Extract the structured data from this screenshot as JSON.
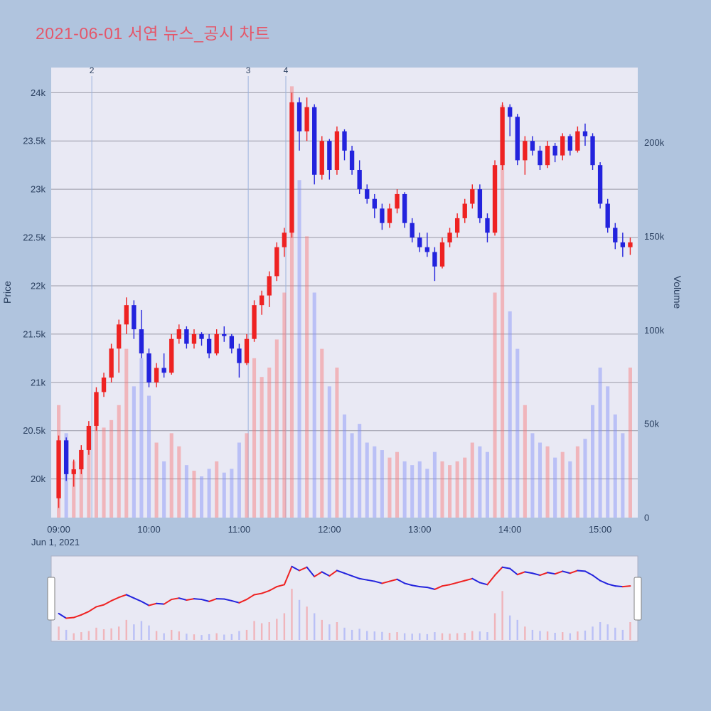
{
  "colors": {
    "page_bg": "#b0c4de",
    "plot_bg": "#e9e9f4",
    "title": "#e4576a",
    "grid": "#9a9aa8",
    "tick": "#2a3f5f",
    "up": "#ee2222",
    "down": "#2323dd",
    "vol_up": "rgba(248,118,118,0.45)",
    "vol_down": "rgba(128,142,248,0.45)",
    "annotation_line": "#9db3dd"
  },
  "chart_data": {
    "type": "candlestick+volume",
    "title": "2021-06-01 서연 뉴스_공시 차트",
    "date_label": "Jun 1, 2021",
    "x_axis": {
      "ticks": [
        "09:00",
        "10:00",
        "11:00",
        "12:00",
        "13:00",
        "14:00",
        "15:00"
      ],
      "range": [
        "08:55",
        "15:25"
      ]
    },
    "price_axis": {
      "label": "Price",
      "range": [
        19600,
        24260
      ],
      "ticks": [
        {
          "v": 20000,
          "label": "20k"
        },
        {
          "v": 20500,
          "label": "20.5k"
        },
        {
          "v": 21000,
          "label": "21k"
        },
        {
          "v": 21500,
          "label": "21.5k"
        },
        {
          "v": 22000,
          "label": "22k"
        },
        {
          "v": 22500,
          "label": "22.5k"
        },
        {
          "v": 23000,
          "label": "23k"
        },
        {
          "v": 23500,
          "label": "23.5k"
        },
        {
          "v": 24000,
          "label": "24k"
        }
      ]
    },
    "volume_axis": {
      "label": "Volume",
      "range": [
        0,
        240000
      ],
      "ticks": [
        {
          "v": 0,
          "label": "0"
        },
        {
          "v": 50000,
          "label": "50k"
        },
        {
          "v": 100000,
          "label": "100k"
        },
        {
          "v": 150000,
          "label": "150k"
        },
        {
          "v": 200000,
          "label": "200k"
        }
      ]
    },
    "annotations": [
      {
        "label": "2",
        "time": "09:22"
      },
      {
        "label": "3",
        "time": "11:06"
      },
      {
        "label": "4",
        "time": "11:31"
      }
    ],
    "candle_format": [
      "time",
      "open",
      "high",
      "low",
      "close",
      "volume"
    ],
    "candles": [
      [
        "09:00",
        19800,
        20450,
        19700,
        20400,
        60000
      ],
      [
        "09:05",
        20400,
        20430,
        19980,
        20050,
        45000
      ],
      [
        "09:10",
        20050,
        20200,
        19920,
        20100,
        30000
      ],
      [
        "09:15",
        20100,
        20350,
        20050,
        20300,
        35000
      ],
      [
        "09:20",
        20300,
        20600,
        20250,
        20550,
        40000
      ],
      [
        "09:25",
        20550,
        20950,
        20500,
        20900,
        55000
      ],
      [
        "09:30",
        20900,
        21100,
        20850,
        21050,
        48000
      ],
      [
        "09:35",
        21050,
        21400,
        21000,
        21350,
        52000
      ],
      [
        "09:40",
        21350,
        21650,
        21100,
        21600,
        60000
      ],
      [
        "09:45",
        21600,
        21880,
        21500,
        21800,
        90000
      ],
      [
        "09:50",
        21800,
        21850,
        21450,
        21550,
        70000
      ],
      [
        "09:55",
        21550,
        21750,
        21250,
        21300,
        85000
      ],
      [
        "10:00",
        21300,
        21350,
        20950,
        21000,
        65000
      ],
      [
        "10:05",
        21000,
        21200,
        20950,
        21150,
        40000
      ],
      [
        "10:10",
        21150,
        21300,
        21050,
        21100,
        30000
      ],
      [
        "10:15",
        21100,
        21500,
        21080,
        21450,
        45000
      ],
      [
        "10:20",
        21450,
        21600,
        21400,
        21550,
        38000
      ],
      [
        "10:25",
        21550,
        21580,
        21350,
        21400,
        28000
      ],
      [
        "10:30",
        21400,
        21550,
        21350,
        21500,
        25000
      ],
      [
        "10:35",
        21500,
        21520,
        21380,
        21450,
        22000
      ],
      [
        "10:40",
        21450,
        21500,
        21250,
        21300,
        26000
      ],
      [
        "10:45",
        21300,
        21550,
        21280,
        21500,
        30000
      ],
      [
        "10:50",
        21500,
        21580,
        21420,
        21480,
        24000
      ],
      [
        "10:55",
        21480,
        21500,
        21300,
        21350,
        26000
      ],
      [
        "11:00",
        21350,
        21400,
        21050,
        21200,
        40000
      ],
      [
        "11:05",
        21200,
        21500,
        21180,
        21450,
        45000
      ],
      [
        "11:10",
        21450,
        21850,
        21420,
        21800,
        85000
      ],
      [
        "11:15",
        21800,
        21950,
        21700,
        21900,
        75000
      ],
      [
        "11:20",
        21900,
        22150,
        21780,
        22100,
        80000
      ],
      [
        "11:25",
        22100,
        22450,
        22050,
        22400,
        95000
      ],
      [
        "11:30",
        22400,
        22600,
        22300,
        22550,
        120000
      ],
      [
        "11:35",
        22550,
        24000,
        22500,
        23900,
        230000
      ],
      [
        "11:40",
        23900,
        23950,
        23400,
        23600,
        180000
      ],
      [
        "11:45",
        23600,
        23950,
        23500,
        23850,
        150000
      ],
      [
        "11:50",
        23850,
        23880,
        23050,
        23150,
        120000
      ],
      [
        "11:55",
        23150,
        23550,
        23100,
        23500,
        90000
      ],
      [
        "12:00",
        23500,
        23520,
        23100,
        23200,
        70000
      ],
      [
        "12:05",
        23200,
        23650,
        23150,
        23600,
        80000
      ],
      [
        "12:10",
        23600,
        23620,
        23300,
        23400,
        55000
      ],
      [
        "12:15",
        23400,
        23450,
        23150,
        23200,
        45000
      ],
      [
        "12:20",
        23200,
        23300,
        22950,
        23000,
        50000
      ],
      [
        "12:25",
        23000,
        23050,
        22850,
        22900,
        40000
      ],
      [
        "12:30",
        22900,
        22950,
        22700,
        22800,
        38000
      ],
      [
        "12:35",
        22800,
        22850,
        22580,
        22650,
        36000
      ],
      [
        "12:40",
        22650,
        22850,
        22600,
        22800,
        32000
      ],
      [
        "12:45",
        22800,
        23000,
        22750,
        22950,
        35000
      ],
      [
        "12:50",
        22950,
        22970,
        22600,
        22650,
        30000
      ],
      [
        "12:55",
        22650,
        22700,
        22450,
        22500,
        28000
      ],
      [
        "13:00",
        22500,
        22550,
        22350,
        22400,
        30000
      ],
      [
        "13:05",
        22400,
        22550,
        22300,
        22350,
        26000
      ],
      [
        "13:10",
        22350,
        22400,
        22050,
        22200,
        35000
      ],
      [
        "13:15",
        22200,
        22500,
        22180,
        22450,
        30000
      ],
      [
        "13:20",
        22450,
        22600,
        22400,
        22550,
        28000
      ],
      [
        "13:25",
        22550,
        22750,
        22500,
        22700,
        30000
      ],
      [
        "13:30",
        22700,
        22900,
        22650,
        22850,
        32000
      ],
      [
        "13:35",
        22850,
        23050,
        22800,
        23000,
        40000
      ],
      [
        "13:40",
        23000,
        23050,
        22650,
        22700,
        38000
      ],
      [
        "13:45",
        22700,
        22750,
        22450,
        22550,
        35000
      ],
      [
        "13:50",
        22550,
        23300,
        22520,
        23250,
        120000
      ],
      [
        "13:55",
        23250,
        23900,
        23200,
        23850,
        220000
      ],
      [
        "14:00",
        23850,
        23880,
        23550,
        23750,
        110000
      ],
      [
        "14:05",
        23750,
        23780,
        23250,
        23300,
        90000
      ],
      [
        "14:10",
        23300,
        23550,
        23150,
        23500,
        60000
      ],
      [
        "14:15",
        23500,
        23550,
        23350,
        23400,
        45000
      ],
      [
        "14:20",
        23400,
        23450,
        23200,
        23250,
        40000
      ],
      [
        "14:25",
        23250,
        23500,
        23220,
        23450,
        38000
      ],
      [
        "14:30",
        23450,
        23480,
        23280,
        23350,
        32000
      ],
      [
        "14:35",
        23350,
        23580,
        23300,
        23550,
        35000
      ],
      [
        "14:40",
        23550,
        23570,
        23350,
        23400,
        30000
      ],
      [
        "14:45",
        23400,
        23650,
        23380,
        23600,
        38000
      ],
      [
        "14:50",
        23600,
        23680,
        23450,
        23550,
        42000
      ],
      [
        "14:55",
        23550,
        23580,
        23200,
        23250,
        60000
      ],
      [
        "15:00",
        23250,
        23280,
        22800,
        22850,
        80000
      ],
      [
        "15:05",
        22850,
        22900,
        22550,
        22600,
        70000
      ],
      [
        "15:10",
        22600,
        22650,
        22380,
        22450,
        55000
      ],
      [
        "15:15",
        22450,
        22550,
        22300,
        22400,
        45000
      ],
      [
        "15:20",
        22400,
        22500,
        22320,
        22450,
        80000
      ]
    ]
  }
}
